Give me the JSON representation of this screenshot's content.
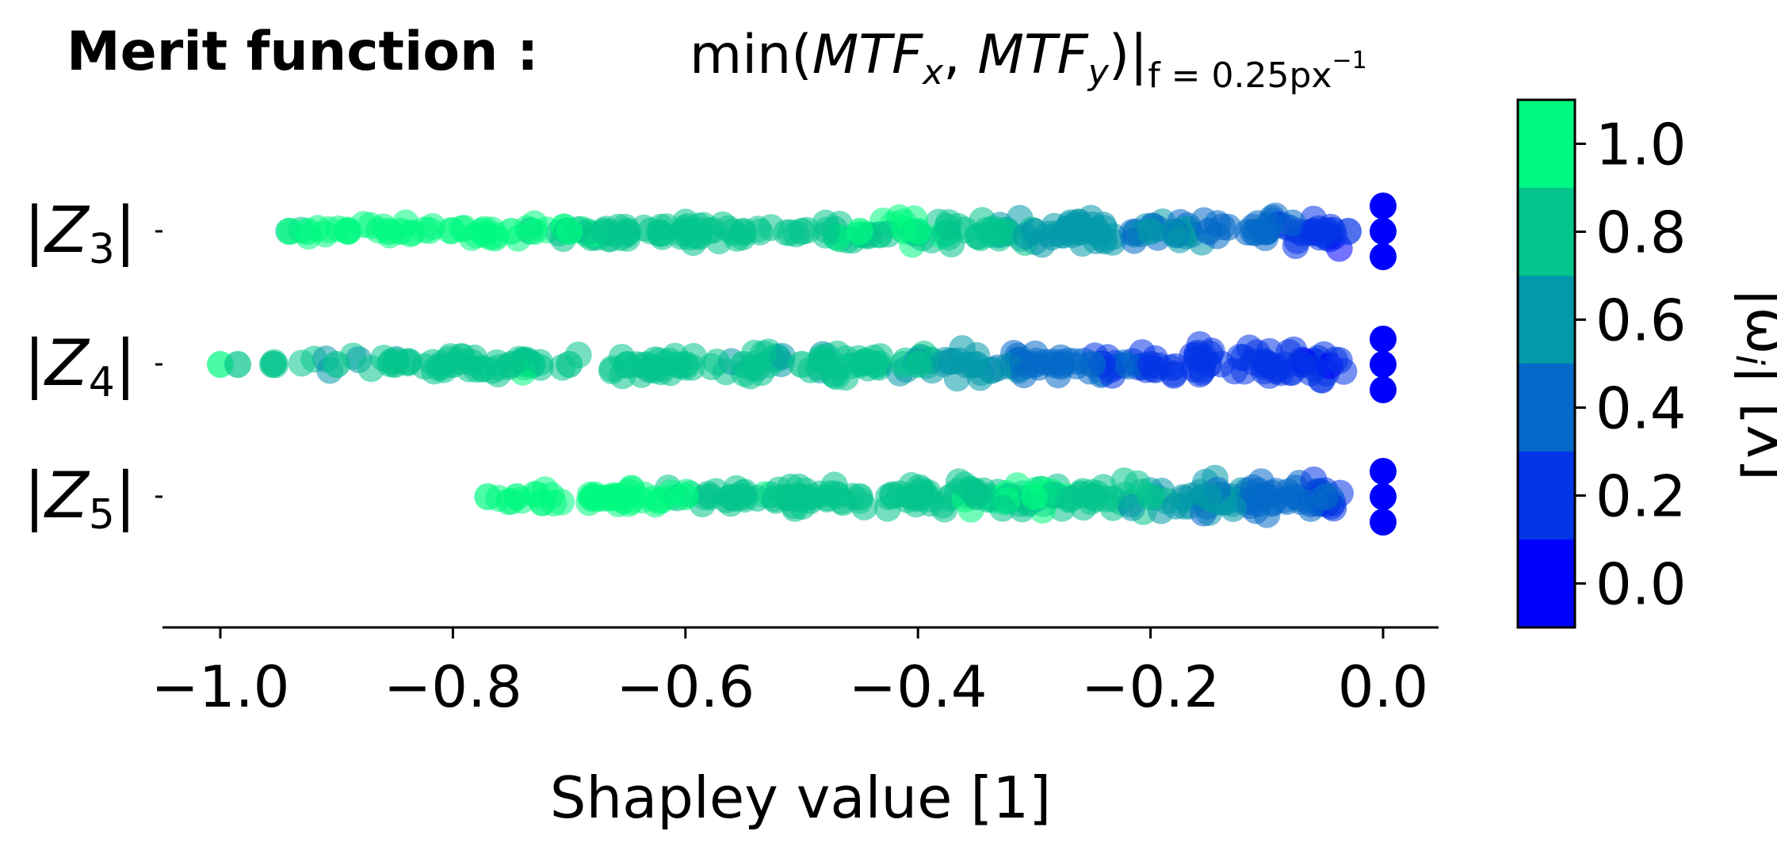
{
  "title": {
    "bold": "Merit function :",
    "math_fn": "min(",
    "math_a": "MTF",
    "math_a_sub": "x",
    "math_sep": ", ",
    "math_b": "MTF",
    "math_b_sub": "y",
    "math_close": ")|",
    "math_eval_sub": "f = 0.25px",
    "math_eval_sup": "−1"
  },
  "chart_data": {
    "type": "scatter",
    "plot_kind": "beeswarm",
    "title": "Merit function : min(MTF_x, MTF_y)|_{f = 0.25px^-1}",
    "xlabel": "Shapley value [1]",
    "ylabel": "",
    "xlim": [
      -1.05,
      0.05
    ],
    "xticks": [
      -1.0,
      -0.8,
      -0.6,
      -0.4,
      -0.2,
      0.0
    ],
    "xtick_labels": [
      "−1.0",
      "−0.8",
      "−0.6",
      "−0.4",
      "−0.2",
      "0.0"
    ],
    "categories": [
      {
        "label_main": "|Z",
        "label_sub": "3",
        "label_end": "|"
      },
      {
        "label_main": "|Z",
        "label_sub": "4",
        "label_end": "|"
      },
      {
        "label_main": "|Z",
        "label_sub": "5",
        "label_end": "|"
      }
    ],
    "series": [
      {
        "feature": "|Z3|",
        "value_range": [
          -0.95,
          0.0
        ],
        "points": [
          {
            "x": -0.94,
            "c": 0.9
          },
          {
            "x": -0.925,
            "c": 0.95
          },
          {
            "x": -0.89,
            "c": 1.0
          },
          {
            "x": -0.855,
            "c": 1.0
          },
          {
            "x": -0.845,
            "c": 1.0
          },
          {
            "x": -0.775,
            "c": 1.0
          },
          {
            "x": -0.75,
            "c": 1.0
          },
          {
            "x": -0.73,
            "c": 0.95
          },
          {
            "x": -0.7,
            "c": 0.9
          },
          {
            "x": -0.67,
            "c": 0.85
          },
          {
            "x": -0.65,
            "c": 0.8
          },
          {
            "x": -0.6,
            "c": 0.85
          },
          {
            "x": -0.55,
            "c": 0.7
          },
          {
            "x": -0.5,
            "c": 0.85
          },
          {
            "x": -0.45,
            "c": 0.9
          },
          {
            "x": -0.4,
            "c": 0.95
          },
          {
            "x": -0.3,
            "c": 0.65
          },
          {
            "x": -0.25,
            "c": 0.6
          },
          {
            "x": -0.2,
            "c": 0.5
          },
          {
            "x": -0.15,
            "c": 0.45
          },
          {
            "x": -0.1,
            "c": 0.4
          },
          {
            "x": -0.06,
            "c": 0.2
          },
          {
            "x": -0.03,
            "c": 0.15
          },
          {
            "x": 0.0,
            "c": 0.0
          }
        ]
      },
      {
        "feature": "|Z4|",
        "value_range": [
          -1.0,
          0.0
        ],
        "points": [
          {
            "x": -1.0,
            "c": 0.9
          },
          {
            "x": -0.985,
            "c": 0.85
          },
          {
            "x": -0.955,
            "c": 0.8
          },
          {
            "x": -0.9,
            "c": 0.7
          },
          {
            "x": -0.85,
            "c": 0.75
          },
          {
            "x": -0.8,
            "c": 0.8
          },
          {
            "x": -0.75,
            "c": 0.85
          },
          {
            "x": -0.7,
            "c": 0.8
          },
          {
            "x": -0.65,
            "c": 0.75
          },
          {
            "x": -0.6,
            "c": 0.8
          },
          {
            "x": -0.55,
            "c": 0.75
          },
          {
            "x": -0.5,
            "c": 0.7
          },
          {
            "x": -0.45,
            "c": 0.8
          },
          {
            "x": -0.4,
            "c": 0.75
          },
          {
            "x": -0.35,
            "c": 0.6
          },
          {
            "x": -0.3,
            "c": 0.4
          },
          {
            "x": -0.25,
            "c": 0.3
          },
          {
            "x": -0.2,
            "c": 0.25
          },
          {
            "x": -0.15,
            "c": 0.2
          },
          {
            "x": -0.1,
            "c": 0.2
          },
          {
            "x": -0.07,
            "c": 0.15
          },
          {
            "x": 0.0,
            "c": 0.0
          }
        ]
      },
      {
        "feature": "|Z5|",
        "value_range": [
          -0.77,
          0.0
        ],
        "points": [
          {
            "x": -0.77,
            "c": 1.0
          },
          {
            "x": -0.745,
            "c": 1.0
          },
          {
            "x": -0.68,
            "c": 1.0
          },
          {
            "x": -0.66,
            "c": 1.0
          },
          {
            "x": -0.6,
            "c": 0.9
          },
          {
            "x": -0.55,
            "c": 0.85
          },
          {
            "x": -0.5,
            "c": 0.8
          },
          {
            "x": -0.45,
            "c": 0.85
          },
          {
            "x": -0.4,
            "c": 0.8
          },
          {
            "x": -0.35,
            "c": 0.85
          },
          {
            "x": -0.3,
            "c": 0.9
          },
          {
            "x": -0.25,
            "c": 0.8
          },
          {
            "x": -0.2,
            "c": 0.7
          },
          {
            "x": -0.15,
            "c": 0.55
          },
          {
            "x": -0.1,
            "c": 0.4
          },
          {
            "x": -0.05,
            "c": 0.3
          },
          {
            "x": 0.0,
            "c": 0.0
          }
        ]
      }
    ],
    "colorbar": {
      "label_main": "|ω",
      "label_sub": "i",
      "label_end": "| [λ]",
      "range": [
        -0.1,
        1.1
      ],
      "ticks": [
        0.0,
        0.2,
        0.4,
        0.6,
        0.8,
        1.0
      ],
      "tick_labels": [
        "0.0",
        "0.2",
        "0.4",
        "0.6",
        "0.8",
        "1.0"
      ],
      "bands": [
        "#0000ff",
        "#0435e6",
        "#0469c8",
        "#0399aa",
        "#04c58c",
        "#00f980"
      ],
      "levels": 6
    },
    "grid": false,
    "legend": "none"
  }
}
